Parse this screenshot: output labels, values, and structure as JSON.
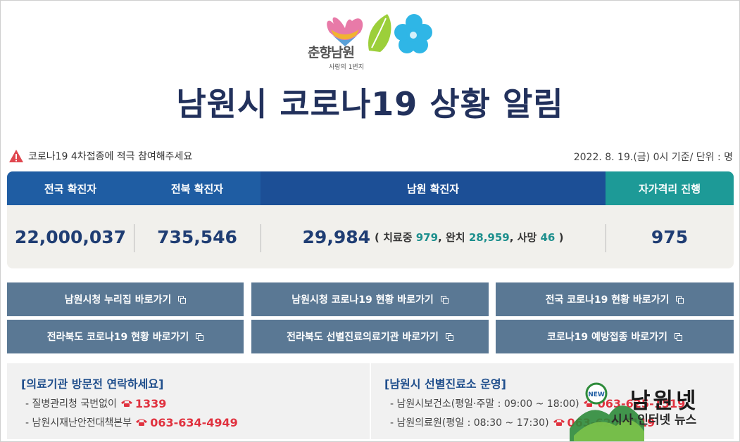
{
  "header": {
    "logo_text": "춘향남원",
    "logo_sub": "사랑의 1번지",
    "title": "남원시 코로나19 상황 알림"
  },
  "notice": {
    "icon": "warning-icon",
    "text": "코로나19 4차접종에 적극 참여해주세요",
    "basis": "2022. 8. 19.(금) 0시 기준/ 단위 : 명"
  },
  "stats": {
    "headers": [
      "전국 확진자",
      "전북 확진자",
      "남원 확진자",
      "자가격리 진행"
    ],
    "national": "22,000,037",
    "jeonbuk": "735,546",
    "namwon": "29,984",
    "paren_open": "( ",
    "treating_label": "치료중",
    "treating": "979",
    "sep1": ",",
    "cured_label": "완치",
    "cured": "28,959",
    "sep2": ",",
    "death_label": "사망",
    "deaths": "46",
    "paren_close": " )",
    "quarantine": "975"
  },
  "links": [
    "남원시청 누리집 바로가기",
    "남원시청 코로나19 현황 바로가기",
    "전국 코로나19 현황 바로가기",
    "전라북도 코로나19 현황 바로가기",
    "전라북도 선별진료의료기관 바로가기",
    "코로나19 예방접종 바로가기"
  ],
  "info_left": {
    "title": "[의료기관 방문전 연락하세요]",
    "lines": [
      {
        "label": "- 질병관리청 국번없이",
        "phone": "1339"
      },
      {
        "label": "- 남원시재난안전대책본부",
        "phone": "063-634-4949"
      }
    ]
  },
  "info_right": {
    "title": "[남원시 선별진료소 운영]",
    "lines": [
      {
        "label": "- 남원시보건소(평일·주말 : 09:00 ~ 18:00)",
        "phone": "063-625-1519"
      },
      {
        "label": "- 남원의료원(평일 : 08:30 ~ 17:30)",
        "phone": "063-620-1119"
      }
    ]
  },
  "watermark": {
    "title": "남원넷",
    "sub": "시사 인터넷 뉴스",
    "badge": "NEW"
  },
  "colors": {
    "title_navy": "#22315c",
    "header_blue": "#1f5da3",
    "header_teal": "#1d9a97",
    "button_slate": "#5a7894",
    "phone_red": "#e0323f"
  }
}
